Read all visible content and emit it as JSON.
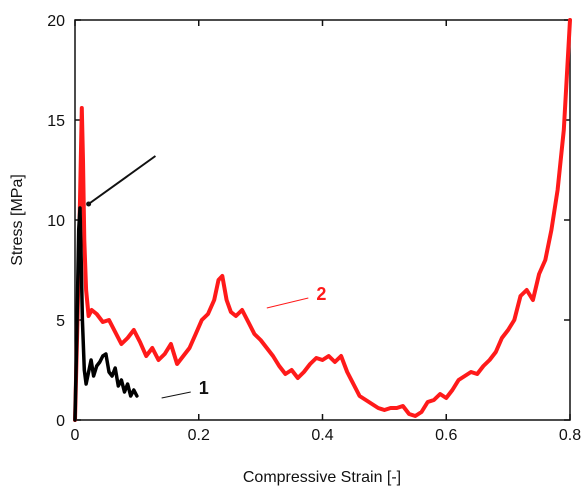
{
  "chart_data": {
    "type": "line",
    "xlabel": "Compressive Strain [-]",
    "ylabel": "Stress [MPa]",
    "xlim": [
      0,
      0.8
    ],
    "ylim": [
      0,
      20
    ],
    "xticks": [
      0,
      0.2,
      0.4,
      0.6,
      0.8
    ],
    "xtick_labels": [
      "0",
      "0.2",
      "0.4",
      "0.6",
      "0.8"
    ],
    "yticks": [
      0,
      5,
      10,
      15,
      20
    ],
    "ytick_labels": [
      "0",
      "5",
      "10",
      "15",
      "20"
    ],
    "grid": false,
    "series": [
      {
        "color": "#ff1a1a",
        "x": [
          0,
          0.004,
          0.008,
          0.011,
          0.013,
          0.015,
          0.018,
          0.022,
          0.027,
          0.035,
          0.045,
          0.055,
          0.065,
          0.075,
          0.085,
          0.095,
          0.105,
          0.115,
          0.125,
          0.135,
          0.145,
          0.155,
          0.165,
          0.175,
          0.185,
          0.195,
          0.205,
          0.215,
          0.225,
          0.232,
          0.238,
          0.245,
          0.252,
          0.26,
          0.27,
          0.28,
          0.29,
          0.3,
          0.31,
          0.32,
          0.33,
          0.34,
          0.35,
          0.36,
          0.37,
          0.38,
          0.39,
          0.4,
          0.41,
          0.42,
          0.43,
          0.44,
          0.45,
          0.46,
          0.47,
          0.48,
          0.49,
          0.5,
          0.51,
          0.52,
          0.53,
          0.54,
          0.55,
          0.56,
          0.57,
          0.58,
          0.59,
          0.6,
          0.61,
          0.62,
          0.63,
          0.64,
          0.65,
          0.66,
          0.67,
          0.68,
          0.69,
          0.7,
          0.71,
          0.72,
          0.73,
          0.74,
          0.75,
          0.76,
          0.77,
          0.78,
          0.79,
          0.8
        ],
        "y": [
          0,
          5,
          11,
          15.6,
          13,
          9,
          6.5,
          5.2,
          5.5,
          5.3,
          4.9,
          5.0,
          4.4,
          3.8,
          4.1,
          4.5,
          3.9,
          3.2,
          3.6,
          3.0,
          3.3,
          3.8,
          2.8,
          3.2,
          3.6,
          4.3,
          5.0,
          5.3,
          6.0,
          7.0,
          7.2,
          6.0,
          5.4,
          5.2,
          5.5,
          4.9,
          4.3,
          4.0,
          3.6,
          3.2,
          2.7,
          2.3,
          2.5,
          2.1,
          2.4,
          2.8,
          3.1,
          3.0,
          3.2,
          2.9,
          3.2,
          2.4,
          1.8,
          1.2,
          1.0,
          0.8,
          0.6,
          0.5,
          0.6,
          0.6,
          0.7,
          0.3,
          0.2,
          0.4,
          0.9,
          1.0,
          1.3,
          1.1,
          1.5,
          2.0,
          2.2,
          2.4,
          2.3,
          2.7,
          3.0,
          3.4,
          4.1,
          4.5,
          5.0,
          6.2,
          6.5,
          6.0,
          7.3,
          8.0,
          9.5,
          11.5,
          14.5,
          20
        ]
      },
      {
        "color": "#000000",
        "x": [
          0,
          0.003,
          0.006,
          0.008,
          0.01,
          0.012,
          0.015,
          0.018,
          0.022,
          0.026,
          0.03,
          0.035,
          0.04,
          0.045,
          0.05,
          0.055,
          0.06,
          0.065,
          0.07,
          0.075,
          0.08,
          0.085,
          0.09,
          0.095,
          0.1
        ],
        "y": [
          0,
          4.5,
          9.5,
          10.6,
          8.0,
          5.0,
          2.5,
          1.8,
          2.4,
          3.0,
          2.2,
          2.7,
          2.9,
          3.2,
          3.3,
          2.4,
          2.2,
          2.6,
          1.7,
          2.0,
          1.4,
          1.8,
          1.2,
          1.5,
          1.2
        ]
      }
    ],
    "annotations": [
      {
        "text": "1",
        "color": "#111111",
        "x": 0.2,
        "y": 1.6,
        "line_to": [
          0.14,
          1.1
        ]
      },
      {
        "text": "2",
        "color": "#ff1a1a",
        "x": 0.39,
        "y": 6.3,
        "line_to": [
          0.31,
          5.6
        ]
      },
      {
        "text": "",
        "color": "#111111",
        "x": 0.13,
        "y": 13.2,
        "line_to": [
          0.022,
          10.8
        ]
      }
    ]
  }
}
